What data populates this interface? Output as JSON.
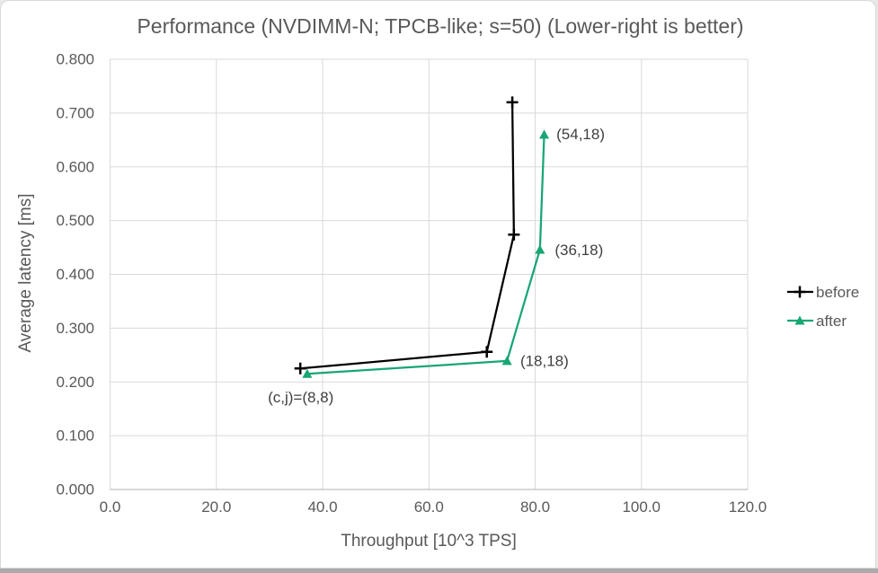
{
  "chart_data": {
    "type": "line",
    "title": "Performance (NVDIMM-N; TPCB-like; s=50) (Lower-right is better)",
    "xlabel": "Throughput [10^3 TPS]",
    "ylabel": "Average latency [ms]",
    "xlim": [
      0,
      120
    ],
    "ylim": [
      0,
      0.8
    ],
    "grid": true,
    "legend_position": "right",
    "x_ticks": [
      {
        "value": 0,
        "label": "0.0"
      },
      {
        "value": 20,
        "label": "20.0"
      },
      {
        "value": 40,
        "label": "40.0"
      },
      {
        "value": 60,
        "label": "60.0"
      },
      {
        "value": 80,
        "label": "80.0"
      },
      {
        "value": 100,
        "label": "100.0"
      },
      {
        "value": 120,
        "label": "120.0"
      }
    ],
    "y_ticks": [
      {
        "value": 0.0,
        "label": "0.000"
      },
      {
        "value": 0.1,
        "label": "0.100"
      },
      {
        "value": 0.2,
        "label": "0.200"
      },
      {
        "value": 0.3,
        "label": "0.300"
      },
      {
        "value": 0.4,
        "label": "0.400"
      },
      {
        "value": 0.5,
        "label": "0.500"
      },
      {
        "value": 0.6,
        "label": "0.600"
      },
      {
        "value": 0.7,
        "label": "0.700"
      },
      {
        "value": 0.8,
        "label": "0.800"
      }
    ],
    "series": [
      {
        "name": "before",
        "color": "#000000",
        "marker": "plus",
        "points": [
          {
            "x": 35.8,
            "y": 0.225
          },
          {
            "x": 70.9,
            "y": 0.256
          },
          {
            "x": 76.0,
            "y": 0.474
          },
          {
            "x": 75.7,
            "y": 0.72
          }
        ]
      },
      {
        "name": "after",
        "color": "#18A673",
        "marker": "triangle",
        "points": [
          {
            "x": 37.1,
            "y": 0.215
          },
          {
            "x": 74.7,
            "y": 0.239
          },
          {
            "x": 80.9,
            "y": 0.446
          },
          {
            "x": 81.7,
            "y": 0.66
          }
        ]
      }
    ],
    "annotations": [
      {
        "text": "(54,18)",
        "x": 84.0,
        "y": 0.661
      },
      {
        "text": "(36,18)",
        "x": 83.7,
        "y": 0.446
      },
      {
        "text": "(18,18)",
        "x": 77.2,
        "y": 0.24
      },
      {
        "text": "(c,j)=(8,8)",
        "x": 29.7,
        "y": 0.172
      }
    ]
  },
  "colors": {
    "gridline": "#d9d9d9",
    "axis_line": "#bfbfbf",
    "tick_text": "#595959",
    "title_text": "#595959",
    "annotation_text": "#404040",
    "legend_text": "#595959"
  }
}
